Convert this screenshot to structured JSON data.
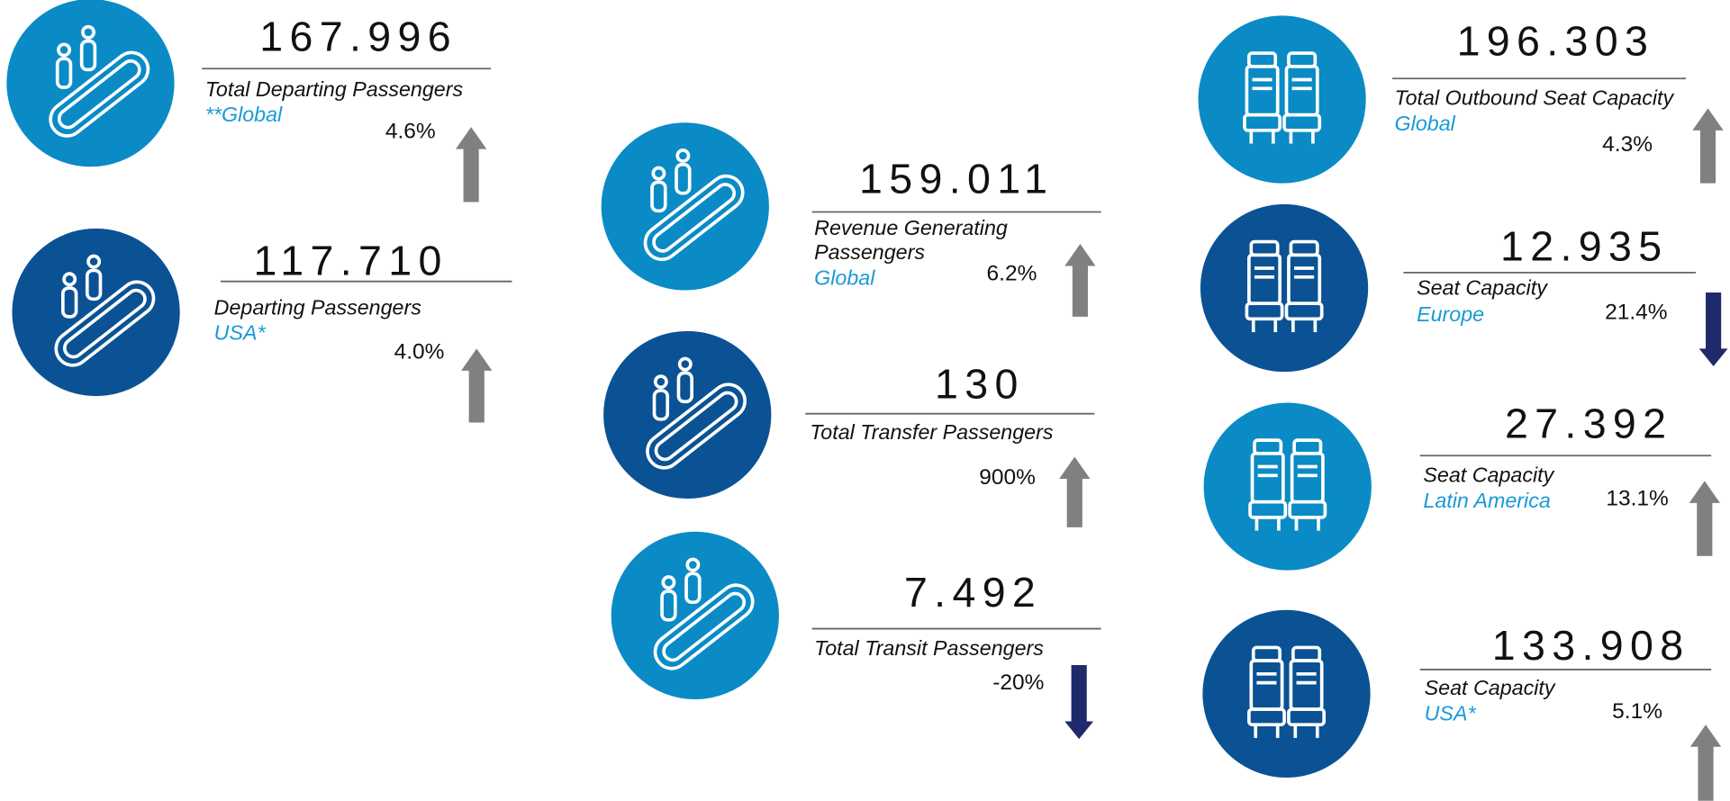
{
  "cards": [
    {
      "value": "167.996",
      "label": "Total Departing Passengers",
      "region": "**Global",
      "change": "4.6%",
      "trend": "up",
      "icon": "escalator",
      "color": "#0a8bc6"
    },
    {
      "value": "117.710",
      "label": "Departing Passengers",
      "region": "USA*",
      "change": "4.0%",
      "trend": "up",
      "icon": "escalator",
      "color": "#0a5294"
    },
    {
      "value": "159.011",
      "label": "Revenue Generating Passengers",
      "region": "Global",
      "change": "6.2%",
      "trend": "up",
      "icon": "escalator",
      "color": "#0a8bc6"
    },
    {
      "value": "130",
      "label": "Total Transfer Passengers",
      "change": "900%",
      "trend": "up",
      "icon": "escalator",
      "color": "#0a5294"
    },
    {
      "value": "7.492",
      "label": "Total Transit Passengers",
      "change": "-20%",
      "trend": "down",
      "icon": "escalator",
      "color": "#0a8bc6"
    },
    {
      "value": "196.303",
      "label": "Total Outbound Seat Capacity",
      "region": "Global",
      "change": "4.3%",
      "trend": "up",
      "icon": "seat",
      "color": "#0a8bc6"
    },
    {
      "value": "12.935",
      "label": "Seat Capacity",
      "region": "Europe",
      "change": "21.4%",
      "trend": "down",
      "icon": "seat",
      "color": "#0a5294"
    },
    {
      "value": "27.392",
      "label": "Seat Capacity",
      "region": "Latin America",
      "change": "13.1%",
      "trend": "up",
      "icon": "seat",
      "color": "#0a8bc6"
    },
    {
      "value": "133.908",
      "label": "Seat Capacity",
      "region": "USA*",
      "change": "5.1%",
      "trend": "up",
      "icon": "seat",
      "color": "#0a5294"
    }
  ]
}
